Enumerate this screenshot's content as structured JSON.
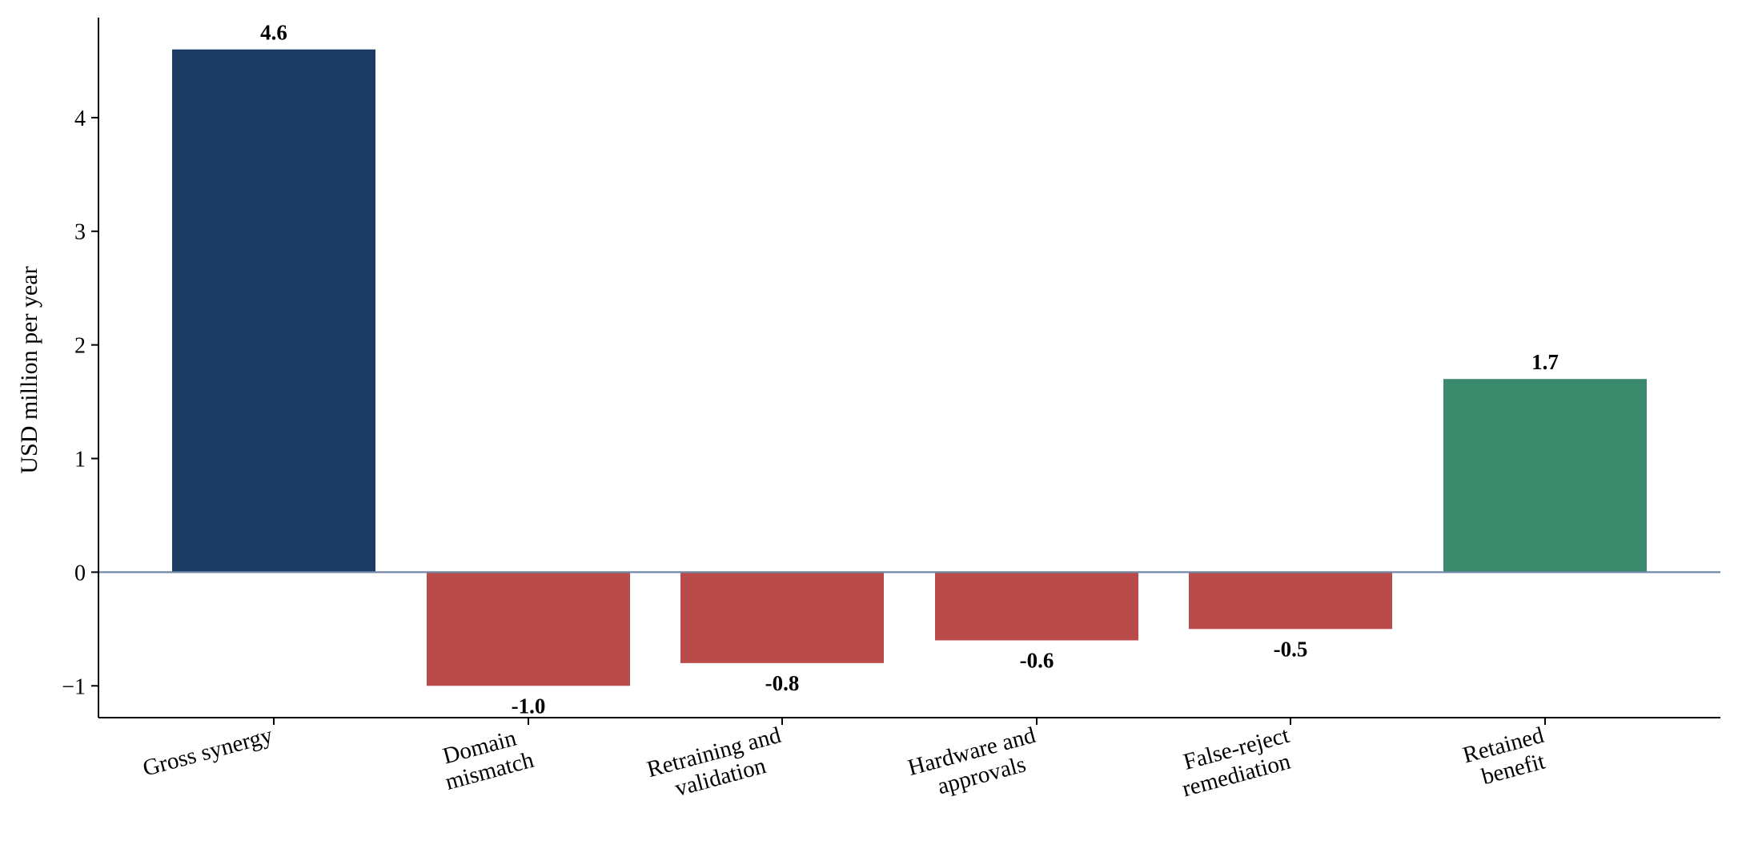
{
  "chart_data": {
    "type": "bar",
    "title": "",
    "xlabel": "",
    "ylabel": "USD million per year",
    "ylim": [
      -1.28,
      4.88
    ],
    "yticks": [
      -1,
      0,
      1,
      2,
      3,
      4
    ],
    "ytick_labels": [
      "−1",
      "0",
      "1",
      "2",
      "3",
      "4"
    ],
    "grid": false,
    "legend": "none",
    "categories": [
      [
        "Gross synergy"
      ],
      [
        "Domain",
        "mismatch"
      ],
      [
        "Retraining and",
        "validation"
      ],
      [
        "Hardware and",
        "approvals"
      ],
      [
        "False-reject",
        "remediation"
      ],
      [
        "Retained",
        "benefit"
      ]
    ],
    "values": [
      4.6,
      -1.0,
      -0.8,
      -0.6,
      -0.5,
      1.7
    ],
    "value_labels": [
      "4.6",
      "-1.0",
      "-0.8",
      "-0.6",
      "-0.5",
      "1.7"
    ],
    "bar_colors": [
      "#1b3a64",
      "#b94c4b",
      "#b94c4b",
      "#b94c4b",
      "#b94c4b",
      "#3b8a6e"
    ],
    "zero_line_color": "#7189a6"
  }
}
